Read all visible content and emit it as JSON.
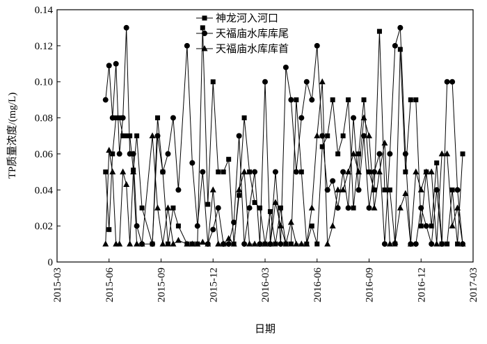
{
  "chart_data": {
    "type": "line",
    "xlabel": "日期",
    "ylabel": "TP质量浓度/(mg/L)",
    "x": [
      2.8,
      3.0,
      3.2,
      3.4,
      3.6,
      3.8,
      4.0,
      4.2,
      4.4,
      4.6,
      4.9,
      5.5,
      5.8,
      6.1,
      6.4,
      6.7,
      7.0,
      7.5,
      7.8,
      8.1,
      8.4,
      8.7,
      9.0,
      9.3,
      9.6,
      9.9,
      10.2,
      10.5,
      10.8,
      11.1,
      11.4,
      11.7,
      12.0,
      12.3,
      12.6,
      12.9,
      13.2,
      13.5,
      13.8,
      14.1,
      14.4,
      14.7,
      15.0,
      15.3,
      15.6,
      15.9,
      16.2,
      16.5,
      16.8,
      17.1,
      17.4,
      17.7,
      18.0,
      18.3,
      18.6,
      18.9,
      19.2,
      19.5,
      19.8,
      20.1,
      20.4,
      20.7,
      21.0,
      21.3,
      21.6,
      21.9,
      22.2,
      22.5,
      22.8,
      23.1,
      23.4
    ],
    "series": [
      {
        "name": "神龙河入河口",
        "color": "#000000",
        "marker": "square",
        "values": [
          0.05,
          0.018,
          0.06,
          0.08,
          0.08,
          0.07,
          0.07,
          0.07,
          0.051,
          0.07,
          0.03,
          0.01,
          0.08,
          0.05,
          0.01,
          0.03,
          0.02,
          0.01,
          0.01,
          0.01,
          0.13,
          0.032,
          0.1,
          0.05,
          0.05,
          0.057,
          0.01,
          0.037,
          0.08,
          0.05,
          0.033,
          0.03,
          0.01,
          0.028,
          0.01,
          0.03,
          0.01,
          0.01,
          0.09,
          0.05,
          0.01,
          0.02,
          0.01,
          0.064,
          0.07,
          0.09,
          0.06,
          0.07,
          0.09,
          0.03,
          0.06,
          0.09,
          0.05,
          0.04,
          0.128,
          0.04,
          0.04,
          0.01,
          0.118,
          0.05,
          0.09,
          0.09,
          0.02,
          0.05,
          0.02,
          0.055,
          0.01,
          0.01,
          0.04,
          0.01,
          0.06
        ]
      },
      {
        "name": "天福庙水库库尾",
        "color": "#000000",
        "marker": "circle",
        "values": [
          0.09,
          0.109,
          0.08,
          0.11,
          0.06,
          0.08,
          0.13,
          0.06,
          0.06,
          0.02,
          0.01,
          0.01,
          0.07,
          0.05,
          0.06,
          0.08,
          0.04,
          0.12,
          0.055,
          0.02,
          0.05,
          0.01,
          0.018,
          0.03,
          0.01,
          0.01,
          0.022,
          0.07,
          0.01,
          0.03,
          0.05,
          0.01,
          0.1,
          0.01,
          0.05,
          0.01,
          0.108,
          0.09,
          0.05,
          0.08,
          0.1,
          0.09,
          0.12,
          0.07,
          0.04,
          0.045,
          0.03,
          0.05,
          0.03,
          0.08,
          0.04,
          0.07,
          0.03,
          0.05,
          0.06,
          0.01,
          0.06,
          0.12,
          0.13,
          0.06,
          0.01,
          0.01,
          0.03,
          0.02,
          0.01,
          0.04,
          0.01,
          0.1,
          0.1,
          0.04,
          0.01
        ]
      },
      {
        "name": "天福庙水库库首",
        "color": "#000000",
        "marker": "triangle",
        "values": [
          0.01,
          0.062,
          0.05,
          0.01,
          0.01,
          0.05,
          0.043,
          0.01,
          0.05,
          0.01,
          0.01,
          0.07,
          0.03,
          0.01,
          0.03,
          0.01,
          0.012,
          0.01,
          0.01,
          0.01,
          0.011,
          0.01,
          0.04,
          0.01,
          0.01,
          0.013,
          0.01,
          0.04,
          0.05,
          0.01,
          0.01,
          0.01,
          0.01,
          0.01,
          0.033,
          0.02,
          0.01,
          0.022,
          0.01,
          0.01,
          0.01,
          0.03,
          0.07,
          0.1,
          0.01,
          0.02,
          0.04,
          0.04,
          0.05,
          0.06,
          0.05,
          0.08,
          0.07,
          0.03,
          0.05,
          0.066,
          0.01,
          0.011,
          0.03,
          0.038,
          0.01,
          0.05,
          0.04,
          0.05,
          0.05,
          0.01,
          0.06,
          0.06,
          0.02,
          0.03,
          0.01
        ]
      }
    ],
    "xlim": [
      0,
      24
    ],
    "xticks": [
      {
        "value": 0,
        "label": "2015-03"
      },
      {
        "value": 3,
        "label": "2015-06"
      },
      {
        "value": 6,
        "label": "2015-09"
      },
      {
        "value": 9,
        "label": "2015-12"
      },
      {
        "value": 12,
        "label": "2016-03"
      },
      {
        "value": 15,
        "label": "2016-06"
      },
      {
        "value": 18,
        "label": "2016-09"
      },
      {
        "value": 21,
        "label": "2016-12"
      },
      {
        "value": 24,
        "label": "2017-03"
      }
    ],
    "ylim": [
      0,
      0.14
    ],
    "yticks": [
      0,
      0.02,
      0.04,
      0.06,
      0.08,
      {
        "value": 0.1,
        "label": "0.10"
      },
      0.12,
      0.14
    ],
    "legend": "top"
  }
}
